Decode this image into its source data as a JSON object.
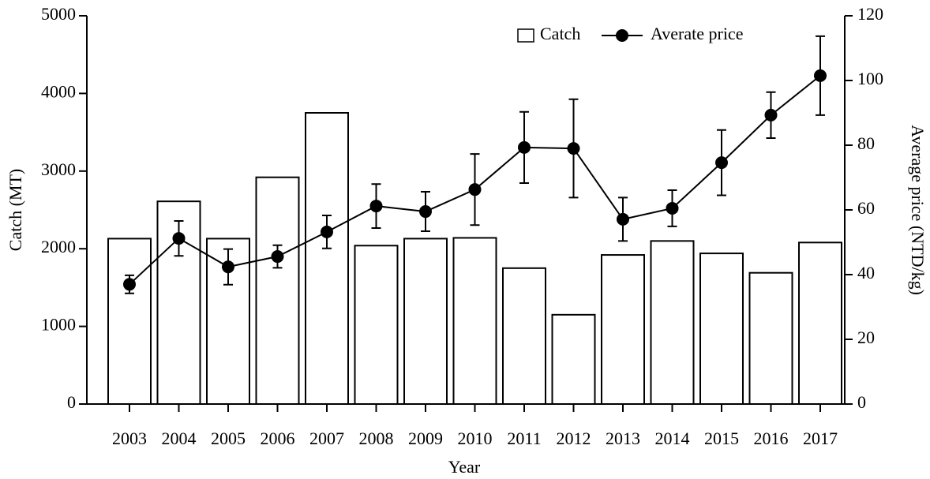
{
  "chart_data": {
    "type": "bar-line",
    "x_label": "Year",
    "y_label": "Catch (MT)",
    "y2_label": "Average price (NTD/kg)",
    "categories": [
      "2003",
      "2004",
      "2005",
      "2006",
      "2007",
      "2008",
      "2009",
      "2010",
      "2011",
      "2012",
      "2013",
      "2014",
      "2015",
      "2016",
      "2017"
    ],
    "series": [
      {
        "name": "Catch",
        "type": "bar",
        "axis": "y",
        "color": "#ffffff",
        "values": [
          2130,
          2610,
          2130,
          2920,
          3750,
          2040,
          2130,
          2140,
          1750,
          1150,
          1920,
          2100,
          1940,
          1690,
          2080
        ]
      },
      {
        "name": "Averate price",
        "type": "line",
        "axis": "y2",
        "color": "#000000",
        "values": [
          37,
          51.2,
          42.4,
          45.6,
          53.2,
          61.2,
          59.5,
          66.3,
          79.3,
          79,
          57.1,
          60.5,
          74.6,
          89.3,
          101.5
        ],
        "errors": [
          2.8,
          5.4,
          5.5,
          3.5,
          5.1,
          6.8,
          6.1,
          11,
          11,
          15.2,
          6.7,
          5.6,
          10.1,
          7.1,
          12.2
        ]
      }
    ],
    "ylim": [
      0,
      5000
    ],
    "yticks": [
      0,
      1000,
      2000,
      3000,
      4000,
      5000
    ],
    "y2lim": [
      0,
      120
    ],
    "y2ticks": [
      0,
      20,
      40,
      60,
      80,
      100,
      120
    ],
    "legend": "top-right"
  }
}
